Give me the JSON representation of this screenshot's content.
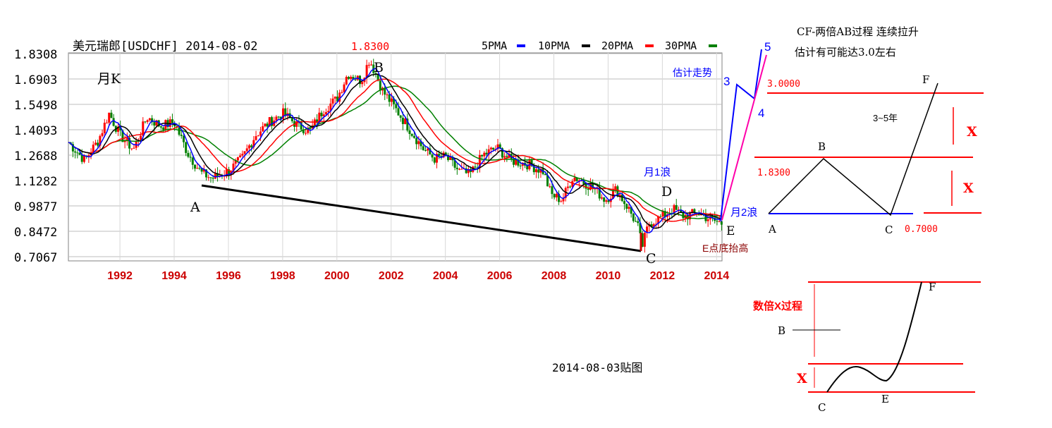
{
  "chart_data": {
    "type": "candlestick",
    "title": "美元瑞郎[USDCHF] 2014-08-02",
    "period_label": "月K",
    "y_ticks": [
      "1.8308",
      "1.6903",
      "1.5498",
      "1.4093",
      "1.2688",
      "1.1282",
      "0.9877",
      "0.8472",
      "0.7067"
    ],
    "x_ticks": [
      "1992",
      "1994",
      "1996",
      "1998",
      "2000",
      "2002",
      "2004",
      "2006",
      "2008",
      "2010",
      "2012",
      "2014"
    ],
    "ylim": [
      0.7067,
      1.8308
    ],
    "xlim": [
      1990.1,
      2014.2
    ],
    "legend": [
      {
        "name": "5PMA",
        "color": "#0000ff"
      },
      {
        "name": "10PMA",
        "color": "#000000"
      },
      {
        "name": "20PMA",
        "color": "#ff0000"
      },
      {
        "name": "30PMA",
        "color": "#008000"
      }
    ],
    "price_path": [
      [
        1990.1,
        1.34
      ],
      [
        1990.7,
        1.24
      ],
      [
        1991.2,
        1.35
      ],
      [
        1991.6,
        1.5
      ],
      [
        1992.0,
        1.38
      ],
      [
        1992.5,
        1.3
      ],
      [
        1993.0,
        1.48
      ],
      [
        1993.5,
        1.43
      ],
      [
        1994.0,
        1.45
      ],
      [
        1994.5,
        1.28
      ],
      [
        1995.0,
        1.17
      ],
      [
        1995.4,
        1.14
      ],
      [
        1996.0,
        1.18
      ],
      [
        1996.5,
        1.25
      ],
      [
        1997.0,
        1.38
      ],
      [
        1997.5,
        1.45
      ],
      [
        1998.0,
        1.5
      ],
      [
        1998.5,
        1.44
      ],
      [
        1999.0,
        1.4
      ],
      [
        1999.5,
        1.52
      ],
      [
        2000.0,
        1.58
      ],
      [
        2000.4,
        1.72
      ],
      [
        2000.9,
        1.68
      ],
      [
        2001.2,
        1.8
      ],
      [
        2001.7,
        1.62
      ],
      [
        2002.0,
        1.56
      ],
      [
        2002.6,
        1.43
      ],
      [
        2003.2,
        1.3
      ],
      [
        2003.6,
        1.25
      ],
      [
        2004.0,
        1.26
      ],
      [
        2004.5,
        1.18
      ],
      [
        2004.9,
        1.16
      ],
      [
        2005.4,
        1.27
      ],
      [
        2005.9,
        1.31
      ],
      [
        2006.4,
        1.24
      ],
      [
        2007.0,
        1.22
      ],
      [
        2007.6,
        1.18
      ],
      [
        2007.9,
        1.05
      ],
      [
        2008.3,
        1.02
      ],
      [
        2008.7,
        1.15
      ],
      [
        2009.0,
        1.13
      ],
      [
        2009.5,
        1.08
      ],
      [
        2009.9,
        1.02
      ],
      [
        2010.3,
        1.08
      ],
      [
        2010.8,
        0.96
      ],
      [
        2011.1,
        0.87
      ],
      [
        2011.25,
        0.76
      ],
      [
        2011.5,
        0.89
      ],
      [
        2011.9,
        0.92
      ],
      [
        2012.4,
        0.97
      ],
      [
        2012.8,
        0.93
      ],
      [
        2013.3,
        0.95
      ],
      [
        2013.8,
        0.91
      ],
      [
        2014.2,
        0.89
      ]
    ],
    "annotations": {
      "price_183": "1.8300",
      "point_a": "A",
      "point_b": "B",
      "point_c": "C",
      "point_d": "D",
      "point_e": "E",
      "wave_month1": "月1浪",
      "wave_month2": "月2浪",
      "e_bottom_higher": "E点底抬高",
      "estimate_trend": "估计走势",
      "wave_3": "3",
      "wave_4": "4",
      "wave_5": "5"
    }
  },
  "projection_text": {
    "line1": "CF-两倍AB过程 连续拉升",
    "line2": "估计有可能达3.0左右"
  },
  "diagram1": {
    "level_top": "3.0000",
    "level_mid": "1.8300",
    "level_low": "0.7000",
    "label_f": "F",
    "label_b": "B",
    "label_a": "A",
    "label_c": "C",
    "duration": "3~5年",
    "x_upper": "X",
    "x_lower": "X"
  },
  "diagram2": {
    "title": "数倍X过程",
    "label_b": "B",
    "label_f": "F",
    "label_c": "C",
    "label_e": "E",
    "x_label": "X"
  },
  "footer_date": "2014-08-03贴图"
}
